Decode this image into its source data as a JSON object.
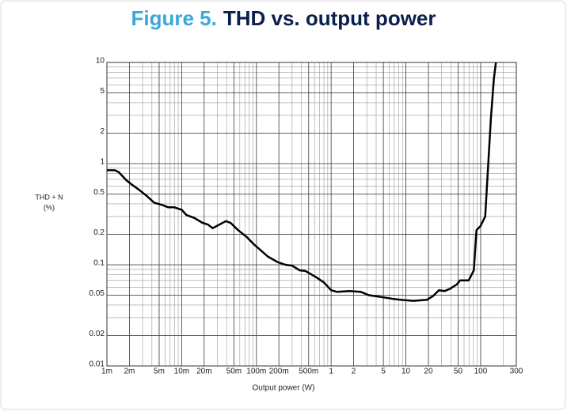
{
  "chart_data": {
    "type": "line",
    "figure_label": "Figure 5.",
    "title": "THD vs. output power",
    "xlabel": "Output power (W)",
    "ylabel": [
      "THD + N",
      "(%)"
    ],
    "xscale": "log",
    "yscale": "log",
    "grid": true,
    "minor_grid": true,
    "xlim": [
      0.001,
      300
    ],
    "ylim": [
      0.01,
      10
    ],
    "xticks": [
      {
        "value": 0.001,
        "label": "1m"
      },
      {
        "value": 0.002,
        "label": "2m"
      },
      {
        "value": 0.005,
        "label": "5m"
      },
      {
        "value": 0.01,
        "label": "10m"
      },
      {
        "value": 0.02,
        "label": "20m"
      },
      {
        "value": 0.05,
        "label": "50m"
      },
      {
        "value": 0.1,
        "label": "100m"
      },
      {
        "value": 0.2,
        "label": "200m"
      },
      {
        "value": 0.5,
        "label": "500m"
      },
      1,
      2,
      5,
      10,
      20,
      50,
      100,
      300
    ],
    "yticks": [
      0.01,
      0.02,
      0.05,
      0.1,
      0.2,
      0.5,
      1,
      2,
      5,
      10
    ],
    "series": [
      {
        "color": "#000000",
        "x": [
          0.001,
          0.00128,
          0.00145,
          0.0018,
          0.0021,
          0.0027,
          0.0034,
          0.0043,
          0.0055,
          0.0066,
          0.008,
          0.01,
          0.0116,
          0.0148,
          0.019,
          0.0224,
          0.026,
          0.032,
          0.039,
          0.045,
          0.057,
          0.073,
          0.092,
          0.113,
          0.144,
          0.194,
          0.245,
          0.3,
          0.38,
          0.45,
          0.62,
          0.8,
          1,
          1.2,
          1.75,
          2.5,
          3.2,
          4.7,
          6.8,
          8.7,
          12.6,
          19,
          23,
          27.6,
          33,
          39,
          48,
          53,
          69,
          81,
          88,
          99,
          115,
          137,
          150,
          160
        ],
        "values": [
          0.86,
          0.86,
          0.82,
          0.69,
          0.63,
          0.55,
          0.48,
          0.41,
          0.39,
          0.37,
          0.37,
          0.35,
          0.31,
          0.29,
          0.26,
          0.25,
          0.23,
          0.25,
          0.27,
          0.26,
          0.22,
          0.19,
          0.16,
          0.14,
          0.12,
          0.106,
          0.1,
          0.098,
          0.088,
          0.087,
          0.076,
          0.067,
          0.056,
          0.054,
          0.055,
          0.054,
          0.05,
          0.048,
          0.046,
          0.045,
          0.044,
          0.045,
          0.049,
          0.056,
          0.055,
          0.058,
          0.064,
          0.07,
          0.07,
          0.088,
          0.22,
          0.24,
          0.3,
          2.8,
          6.8,
          10
        ]
      }
    ]
  }
}
